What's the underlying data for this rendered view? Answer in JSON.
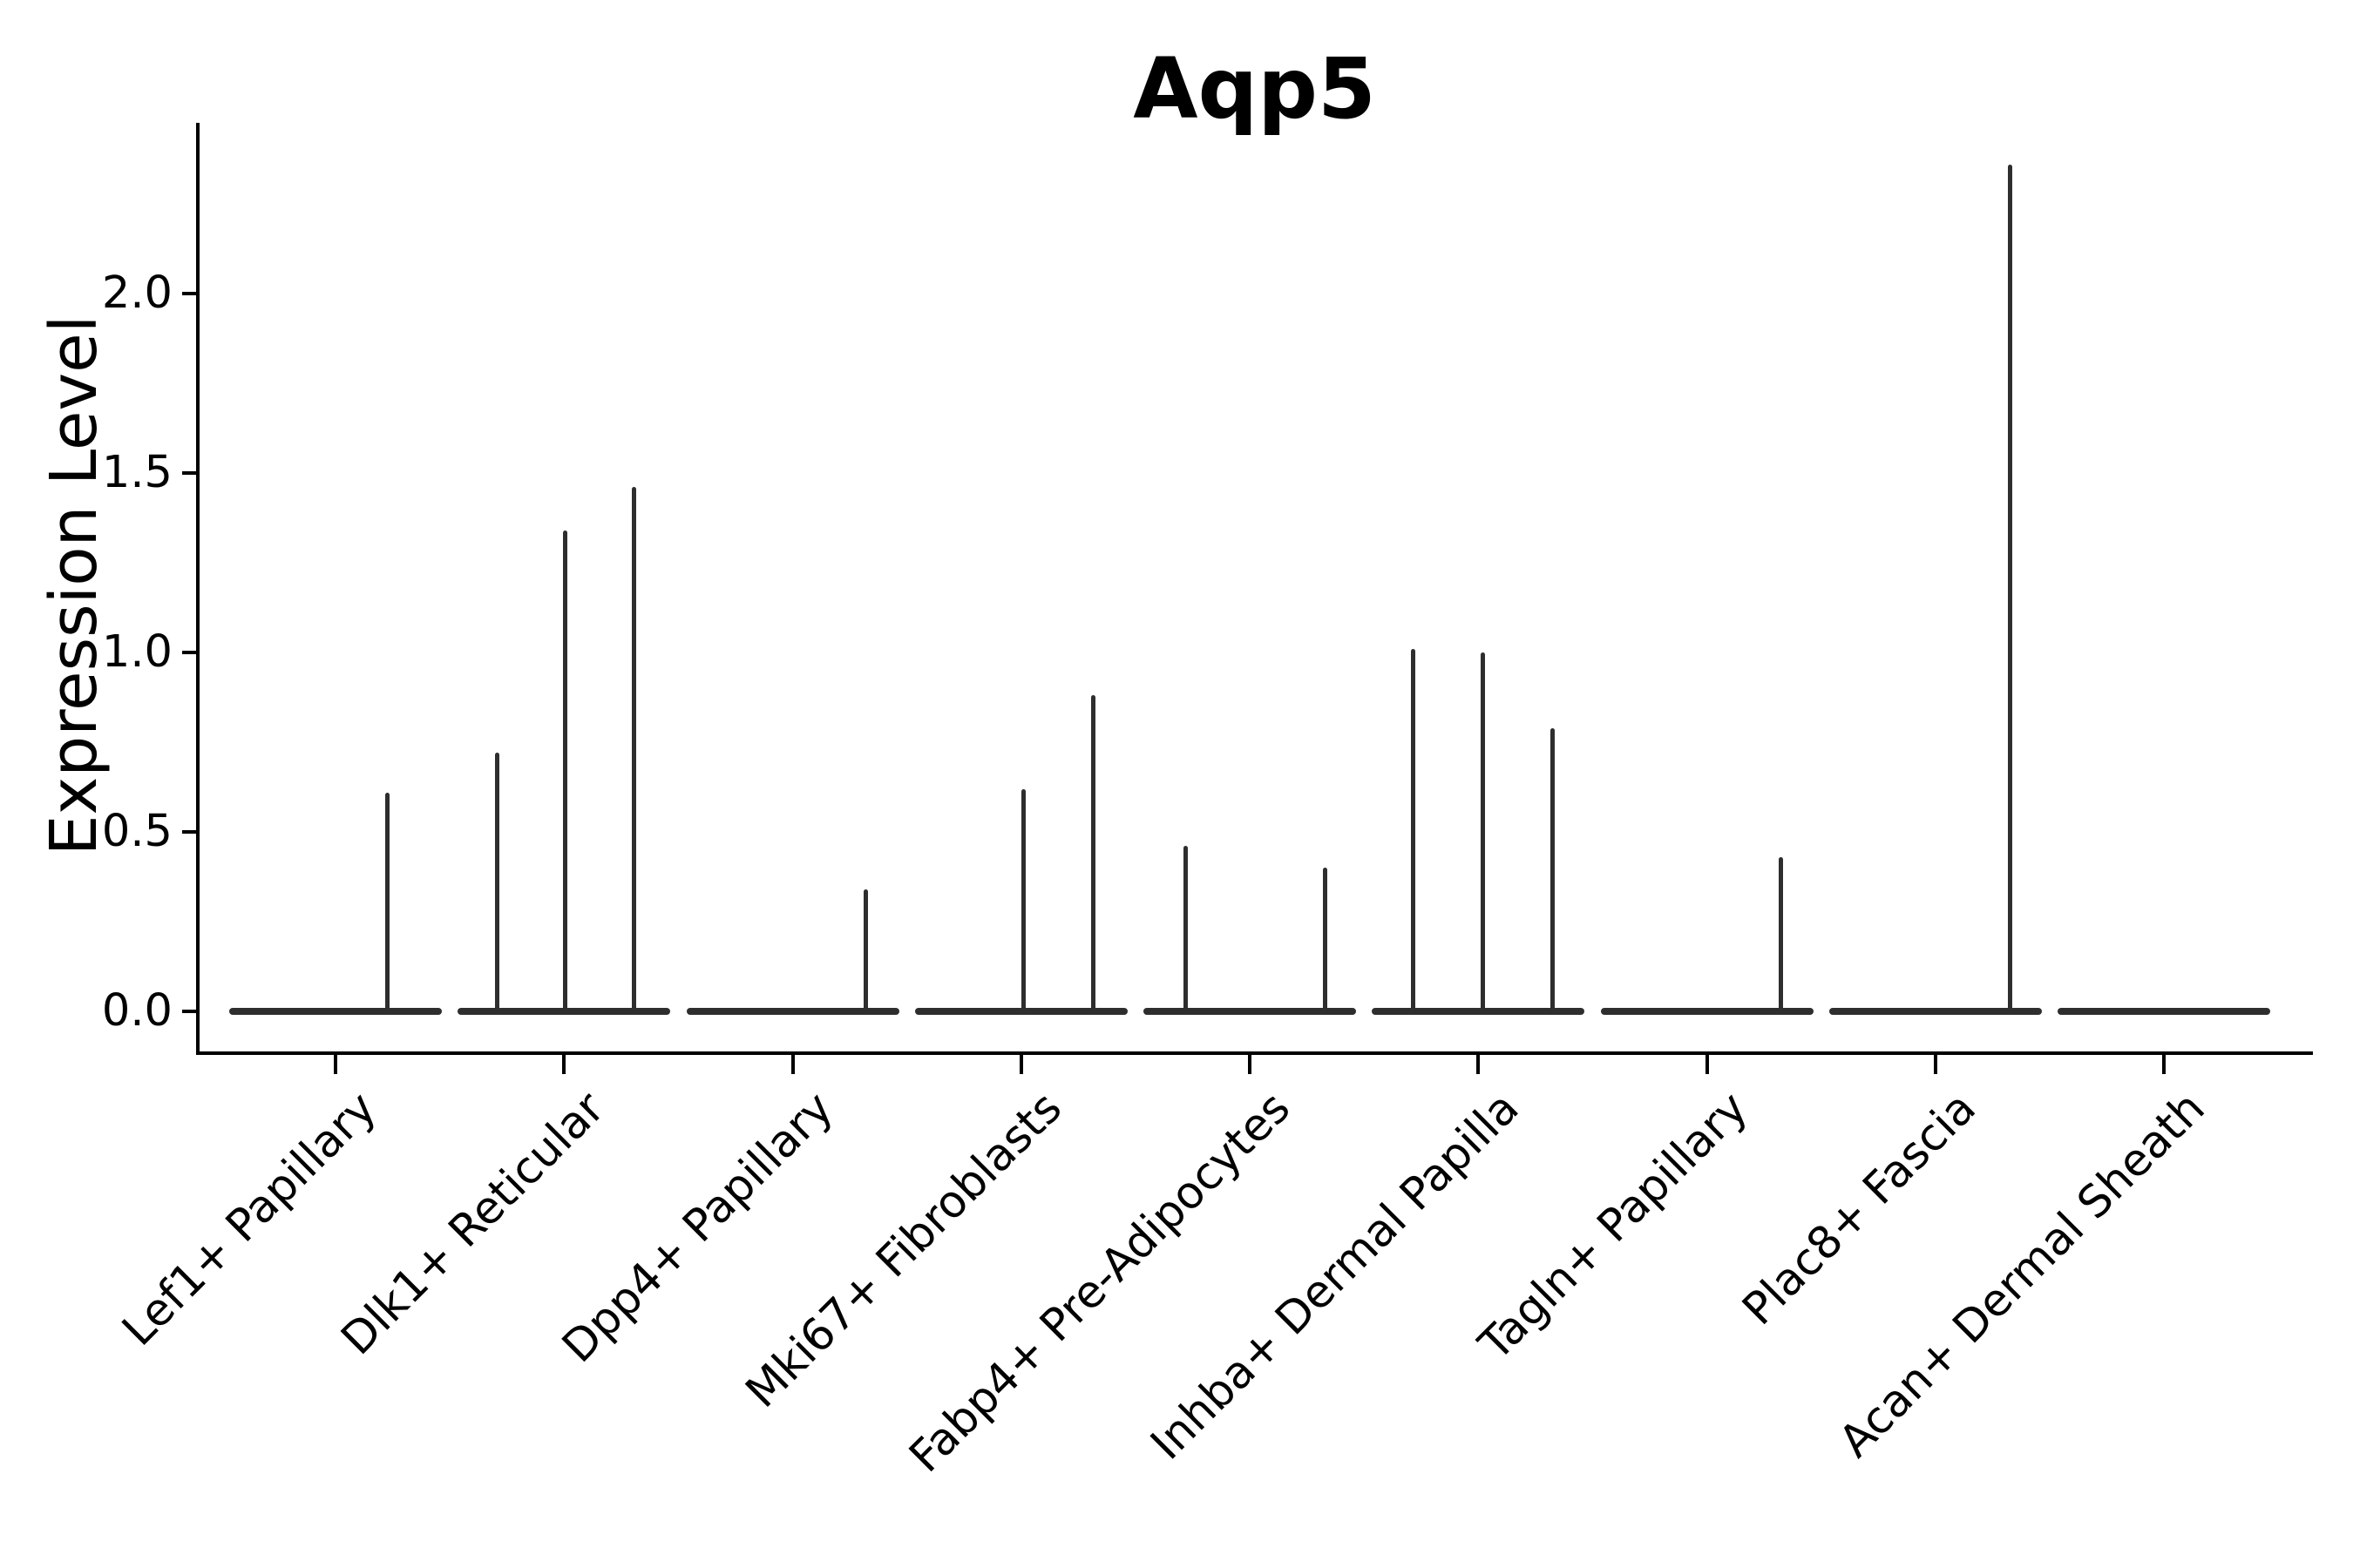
{
  "chart_data": {
    "type": "violin",
    "title": "Aqp5",
    "ylabel": "Expression Level",
    "xlabel": "",
    "grid": false,
    "legend": null,
    "ylim": [
      -0.12,
      2.48
    ],
    "ytick_labels": [
      "0.0",
      "0.5",
      "1.0",
      "1.5",
      "2.0"
    ],
    "ytick_values": [
      0.0,
      0.5,
      1.0,
      1.5,
      2.0
    ],
    "categories": [
      "Lef1+ Papillary",
      "Dlk1+ Reticular",
      "Dpp4+ Papillary",
      "Mki67+ Fibroblasts",
      "Fabp4+ Pre-Adipocytes",
      "Inhba+ Dermal Papilla",
      "Tagln+ Papillary",
      "Plac8+ Fascia",
      "Acan+ Dermal Sheath"
    ],
    "violins": [
      {
        "category": "Lef1+ Papillary",
        "body_value": 0.0,
        "spikes": [
          {
            "value": 0.61,
            "offset": 0.49
          }
        ]
      },
      {
        "category": "Dlk1+ Reticular",
        "body_value": 0.0,
        "spikes": [
          {
            "value": 0.72,
            "offset": -0.63
          },
          {
            "value": 1.34,
            "offset": 0.01
          },
          {
            "value": 1.46,
            "offset": 0.66
          }
        ]
      },
      {
        "category": "Dpp4+ Papillary",
        "body_value": 0.0,
        "spikes": [
          {
            "value": 0.34,
            "offset": 0.69
          }
        ]
      },
      {
        "category": "Mki67+ Fibroblasts",
        "body_value": 0.0,
        "spikes": [
          {
            "value": 0.62,
            "offset": 0.02
          },
          {
            "value": 0.88,
            "offset": 0.68
          }
        ]
      },
      {
        "category": "Fabp4+ Pre-Adipocytes",
        "body_value": 0.0,
        "spikes": [
          {
            "value": 0.46,
            "offset": -0.6
          },
          {
            "value": 0.4,
            "offset": 0.71
          }
        ]
      },
      {
        "category": "Inhba+ Dermal Papilla",
        "body_value": 0.0,
        "spikes": [
          {
            "value": 1.01,
            "offset": -0.61
          },
          {
            "value": 1.0,
            "offset": 0.04
          },
          {
            "value": 0.79,
            "offset": 0.7
          }
        ]
      },
      {
        "category": "Tagln+ Papillary",
        "body_value": 0.0,
        "spikes": [
          {
            "value": 0.43,
            "offset": 0.7
          }
        ]
      },
      {
        "category": "Plac8+ Fascia",
        "body_value": 0.0,
        "spikes": [
          {
            "value": 2.36,
            "offset": 0.7
          }
        ]
      },
      {
        "category": "Acan+ Dermal Sheath",
        "body_value": 0.0,
        "spikes": []
      }
    ],
    "colors": {
      "violin_line": "#2e2e2e",
      "spine": "#000000",
      "text": "#000000",
      "background": "#ffffff"
    }
  }
}
